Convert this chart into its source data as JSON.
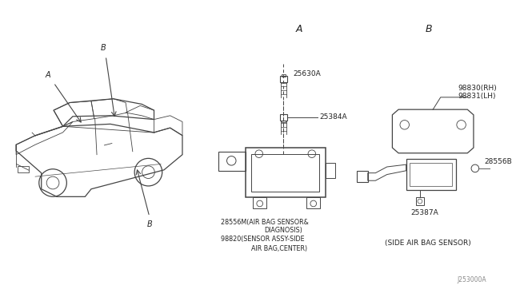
{
  "bg_color": "#ffffff",
  "line_color": "#444444",
  "text_color": "#222222",
  "fig_width": 6.4,
  "fig_height": 3.72,
  "dpi": 100,
  "section_A_label": "A",
  "section_B_label": "B",
  "part_25630A": "25630A",
  "part_25384A": "25384A",
  "part_28556M_1": "28556M(AIR BAG SENSOR&",
  "part_28556M_2": "DIAGNOSIS)",
  "part_98820_1": "98820(SENSOR ASSY-SIDE",
  "part_98820_2": "AIR BAG,CENTER)",
  "part_98830": "98830(RH)",
  "part_98831": "98831(LH)",
  "part_28556B": "28556B",
  "part_25387A": "25387A",
  "side_sensor": "(SIDE AIR BAG SENSOR)",
  "footer": "J253000A",
  "label_A_car": "A",
  "label_B_car_top": "B",
  "label_B_car_bot": "B"
}
